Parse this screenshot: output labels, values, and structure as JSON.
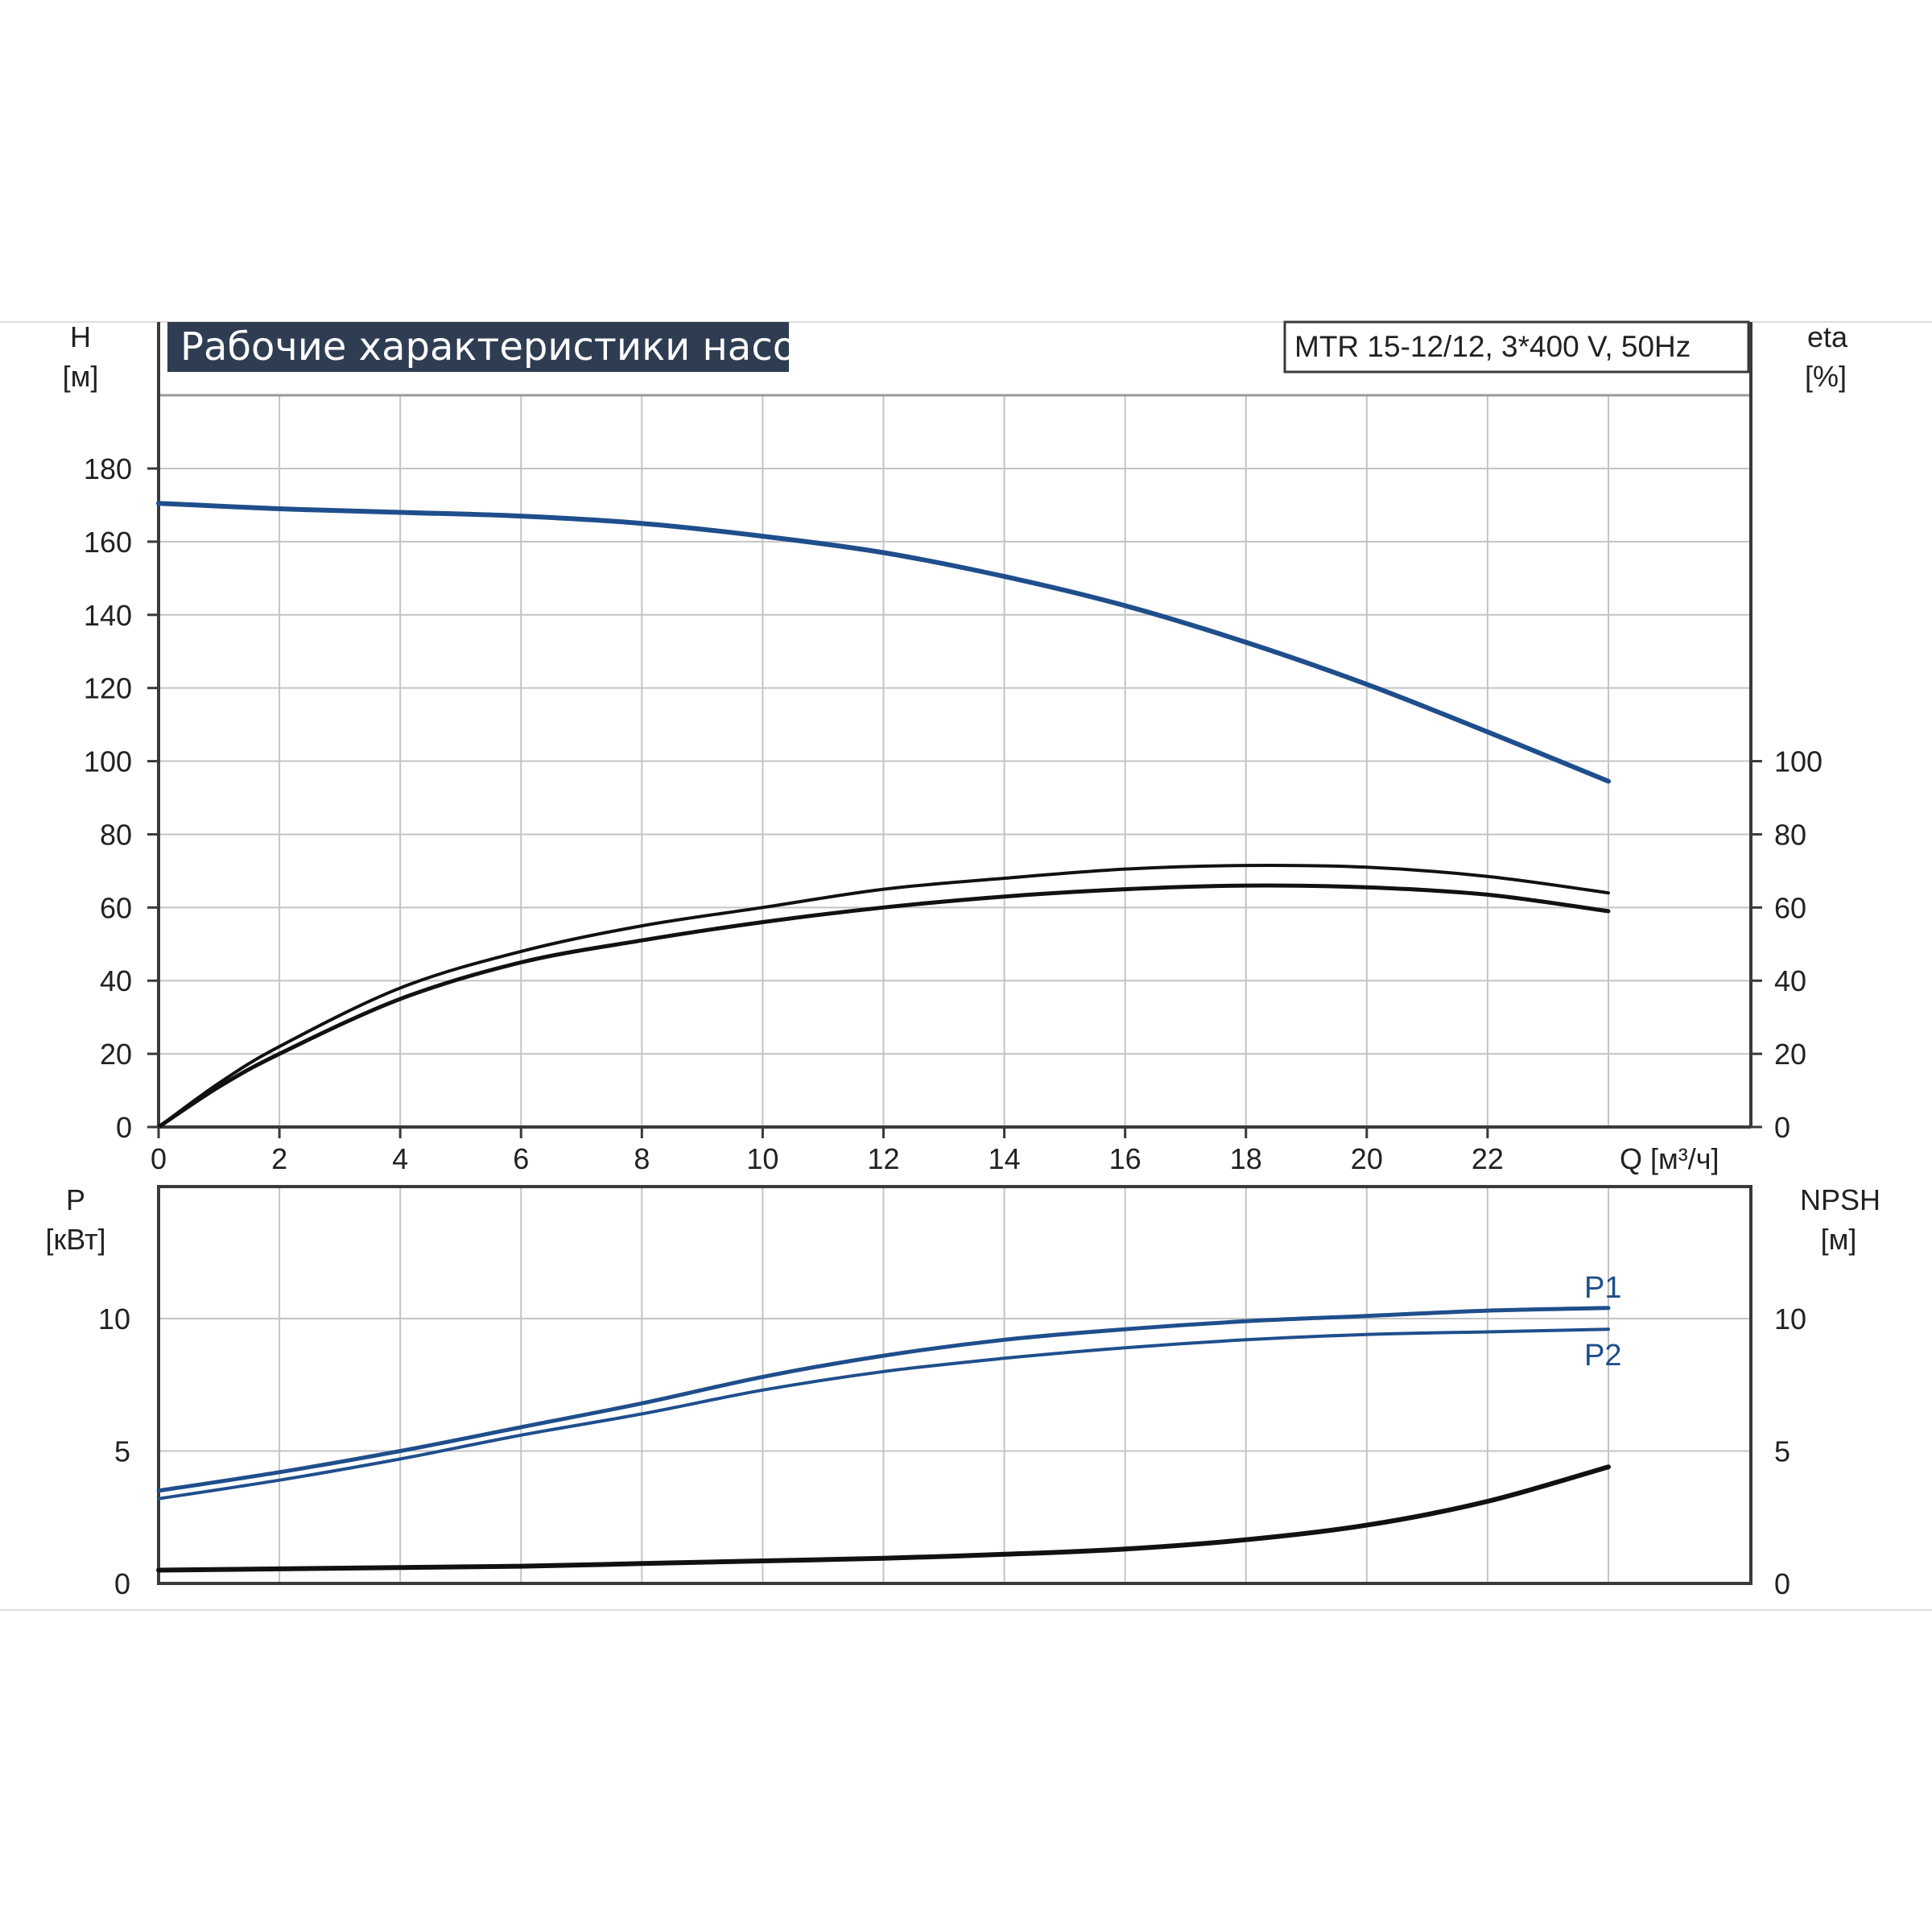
{
  "chart_data": {
    "type": "line",
    "title": "Рабочие характеристики насоса",
    "model": "MTR 15-12/12, 3*400 V, 50Hz",
    "colors": {
      "curve_blue": "#1f4e8c",
      "curve_black": "#111111",
      "grid": "#c4c4c4",
      "title_bg": "#2f3d52",
      "axis": "#3a3a3a"
    },
    "x_axis": {
      "label": "Q [м³/ч]",
      "range": [
        0,
        26
      ],
      "ticks": [
        "0",
        "2",
        "4",
        "6",
        "8",
        "10",
        "12",
        "14",
        "16",
        "18",
        "20",
        "22"
      ]
    },
    "upper": {
      "y_left": {
        "name": "H",
        "unit": "[м]",
        "range": [
          0,
          200
        ],
        "ticks": [
          "0",
          "20",
          "40",
          "60",
          "80",
          "100",
          "120",
          "140",
          "160",
          "180"
        ]
      },
      "y_right": {
        "name": "eta",
        "unit": "[%]",
        "range": [
          0,
          200
        ],
        "ticks": [
          "0",
          "20",
          "40",
          "60",
          "80",
          "100"
        ]
      },
      "series": [
        {
          "id": "H",
          "color": "#1f4e8c",
          "axis": "left",
          "x": [
            0,
            2,
            4,
            6,
            8,
            10,
            12,
            14,
            16,
            18,
            20,
            22,
            24
          ],
          "y": [
            170.5,
            169,
            168,
            167,
            165,
            161.5,
            157,
            150.5,
            142.5,
            132.5,
            121,
            108,
            94.5
          ]
        },
        {
          "id": "eta-upper",
          "color": "#111111",
          "axis": "right",
          "x": [
            0,
            1,
            2,
            4,
            6,
            8,
            10,
            12,
            14,
            16,
            18,
            20,
            22,
            24
          ],
          "y": [
            0,
            12,
            22,
            38,
            48,
            55,
            60,
            65,
            68,
            70.5,
            71.5,
            71,
            68.5,
            64
          ]
        },
        {
          "id": "eta-lower",
          "color": "#111111",
          "axis": "right",
          "x": [
            0,
            1,
            2,
            4,
            6,
            8,
            10,
            12,
            14,
            16,
            18,
            20,
            22,
            24
          ],
          "y": [
            0,
            11,
            20,
            35,
            45,
            51,
            56,
            60,
            63,
            65,
            66,
            65.5,
            63.5,
            59
          ]
        }
      ]
    },
    "lower": {
      "y_left": {
        "name": "P",
        "unit": "[кВт]",
        "range": [
          0,
          15
        ],
        "ticks": [
          "0",
          "5",
          "10"
        ]
      },
      "y_right": {
        "name": "NPSH",
        "unit": "[м]",
        "range": [
          0,
          15
        ],
        "ticks": [
          "0",
          "5",
          "10"
        ]
      },
      "series": [
        {
          "id": "P1",
          "name": "P1",
          "color": "#1f4e8c",
          "axis": "left",
          "x": [
            0,
            2,
            4,
            6,
            8,
            10,
            12,
            14,
            16,
            18,
            20,
            22,
            24
          ],
          "y": [
            3.5,
            4.2,
            5.0,
            5.9,
            6.8,
            7.8,
            8.6,
            9.2,
            9.6,
            9.9,
            10.1,
            10.3,
            10.4
          ]
        },
        {
          "id": "P2",
          "name": "P2",
          "color": "#1f4e8c",
          "axis": "left",
          "x": [
            0,
            2,
            4,
            6,
            8,
            10,
            12,
            14,
            16,
            18,
            20,
            22,
            24
          ],
          "y": [
            3.2,
            3.9,
            4.7,
            5.6,
            6.4,
            7.3,
            8.0,
            8.5,
            8.9,
            9.2,
            9.4,
            9.5,
            9.6
          ]
        },
        {
          "id": "NPSH",
          "color": "#111111",
          "axis": "right",
          "x": [
            0,
            2,
            4,
            6,
            8,
            10,
            12,
            14,
            16,
            18,
            20,
            22,
            24
          ],
          "y": [
            0.5,
            0.55,
            0.6,
            0.65,
            0.75,
            0.85,
            0.95,
            1.1,
            1.3,
            1.65,
            2.2,
            3.1,
            4.4
          ]
        }
      ]
    }
  }
}
